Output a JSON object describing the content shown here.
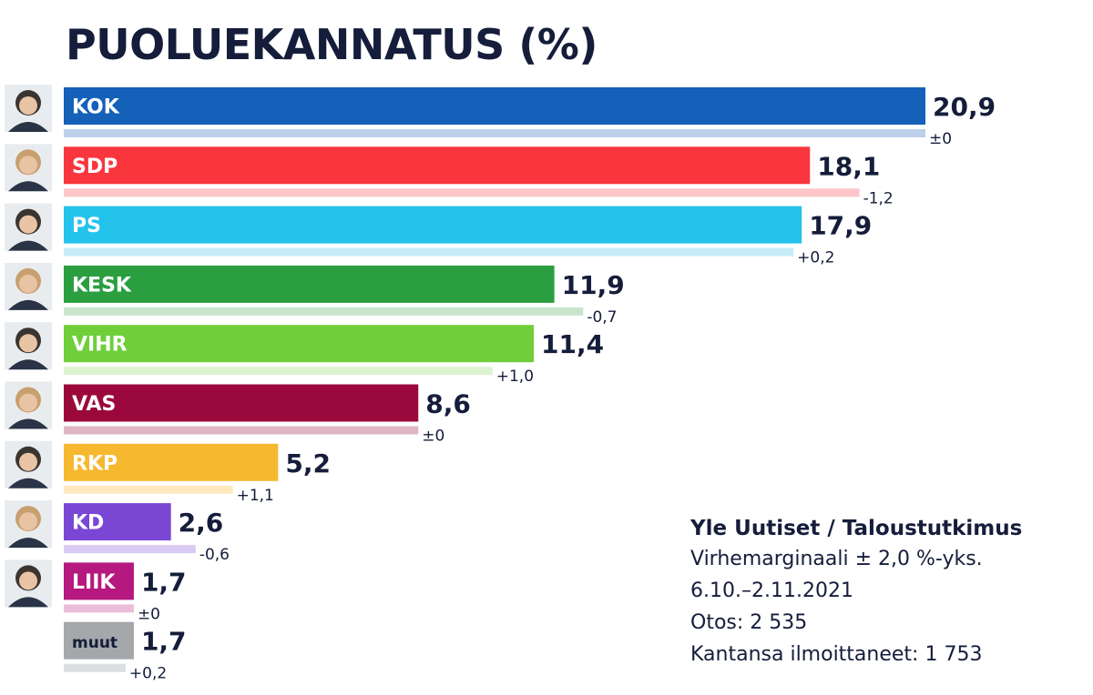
{
  "chart_data": {
    "type": "bar",
    "orientation": "horizontal",
    "title": "PUOLUEKANNATUS (%)",
    "categories": [
      "KOK",
      "SDP",
      "PS",
      "KESK",
      "VIHR",
      "VAS",
      "RKP",
      "KD",
      "LIIK",
      "muut"
    ],
    "values": [
      20.9,
      18.1,
      17.9,
      11.9,
      11.4,
      8.6,
      5.2,
      2.6,
      1.7,
      1.7
    ],
    "value_labels": [
      "20,9",
      "18,1",
      "17,9",
      "11,9",
      "11,4",
      "8,6",
      "5,2",
      "2,6",
      "1,7",
      "1,7"
    ],
    "changes": [
      0,
      -1.2,
      0.2,
      -0.7,
      1.0,
      0,
      1.1,
      -0.6,
      0,
      0.2
    ],
    "change_labels": [
      "±0",
      "-1,2",
      "+0,2",
      "-0,7",
      "+1,0",
      "±0",
      "+1,1",
      "-0,6",
      "±0",
      "+0,2"
    ],
    "previous_values": [
      20.9,
      19.3,
      17.7,
      12.6,
      10.4,
      8.6,
      4.1,
      3.2,
      1.7,
      1.5
    ],
    "colors": [
      "#1560b8",
      "#f9363d",
      "#23c3ec",
      "#2b9e40",
      "#6fce3a",
      "#9b083c",
      "#f6b82e",
      "#7a47d4",
      "#b5187e",
      "#a4a8ab"
    ],
    "previous_colors": [
      "#bcd0ec",
      "#fdc6c8",
      "#c5ecf8",
      "#c8e5cc",
      "#dcf3cf",
      "#e0b5c4",
      "#fde9bd",
      "#d8ccf3",
      "#ebbdd9",
      "#dcdfe0"
    ],
    "xlim": [
      0,
      21
    ],
    "grid": false,
    "legend": "none"
  },
  "info": {
    "source": "Yle Uutiset / Taloustutkimus",
    "margin": "Virhemarginaali ± 2,0 %-yks.",
    "period": "6.10.–2.11.2021",
    "sample": "Otos: 2 535",
    "respondents": "Kantansa ilmoittaneet: 1 753"
  },
  "portraits": [
    "person-portrait-icon",
    "person-portrait-icon",
    "person-portrait-icon",
    "person-portrait-icon",
    "person-portrait-icon",
    "person-portrait-icon",
    "person-portrait-icon",
    "person-portrait-icon",
    "person-portrait-icon"
  ]
}
